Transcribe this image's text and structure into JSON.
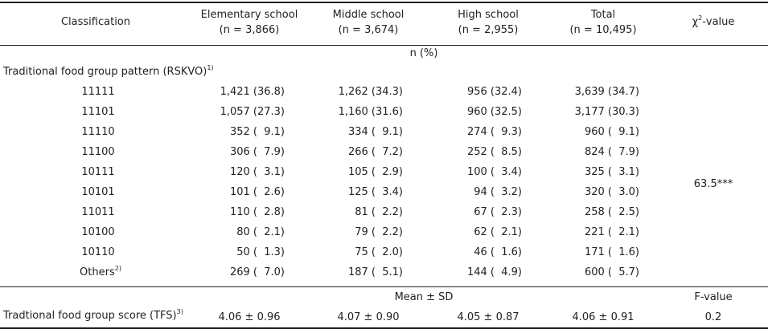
{
  "header": {
    "classification": "Classification",
    "elementary": "Elementary school",
    "elementary_n": "(n = 3,866)",
    "middle": "Middle school",
    "middle_n": "(n = 3,674)",
    "high": "High school",
    "high_n": "(n = 2,955)",
    "total": "Total",
    "total_n": "(n = 10,495)",
    "chi_prefix": "χ",
    "chi_sup": "2",
    "chi_suffix": "-value"
  },
  "unit_row": "n (%)",
  "section": {
    "label": "Traditional food group pattern (RSKVO)",
    "note": "1)"
  },
  "rows": [
    {
      "pattern": "11111",
      "elem": "1,421 (36.8)",
      "mid": "1,262 (34.3)",
      "high": "956 (32.4)",
      "total": "3,639 (34.7)"
    },
    {
      "pattern": "11101",
      "elem": "1,057 (27.3)",
      "mid": "1,160 (31.6)",
      "high": "960 (32.5)",
      "total": "3,177 (30.3)"
    },
    {
      "pattern": "11110",
      "elem": "352 (  9.1)",
      "mid": "334 (  9.1)",
      "high": "274 (  9.3)",
      "total": "960 (  9.1)"
    },
    {
      "pattern": "11100",
      "elem": "306 (  7.9)",
      "mid": "266 (  7.2)",
      "high": "252 (  8.5)",
      "total": "824 (  7.9)"
    },
    {
      "pattern": "10111",
      "elem": "120 (  3.1)",
      "mid": "105 (  2.9)",
      "high": "100 (  3.4)",
      "total": "325 (  3.1)"
    },
    {
      "pattern": "10101",
      "elem": "101 (  2.6)",
      "mid": "125 (  3.4)",
      "high": "94 (  3.2)",
      "total": "320 (  3.0)"
    },
    {
      "pattern": "11011",
      "elem": "110 (  2.8)",
      "mid": "81 (  2.2)",
      "high": "67 (  2.3)",
      "total": "258 (  2.5)"
    },
    {
      "pattern": "10100",
      "elem": "80 (  2.1)",
      "mid": "79 (  2.2)",
      "high": "62 (  2.1)",
      "total": "221 (  2.1)"
    },
    {
      "pattern": "10110",
      "elem": "50 (  1.3)",
      "mid": "75 (  2.0)",
      "high": "46 (  1.6)",
      "total": "171 (  1.6)"
    },
    {
      "pattern": "Others",
      "note": "2)",
      "elem": "269 (  7.0)",
      "mid": "187 (  5.1)",
      "high": "144 (  4.9)",
      "total": "600 (  5.7)"
    }
  ],
  "chi_value": "63.5***",
  "mean_row": {
    "label": "Mean ± SD",
    "fvalue_label": "F-value"
  },
  "score_row": {
    "label": "Tradtional food group score (TFS)",
    "note": "3)",
    "elem": "4.06 ± 0.96",
    "mid": "4.07 ± 0.90",
    "high": "4.05 ± 0.87",
    "total": "4.06 ± 0.91",
    "fvalue": "0.2"
  }
}
